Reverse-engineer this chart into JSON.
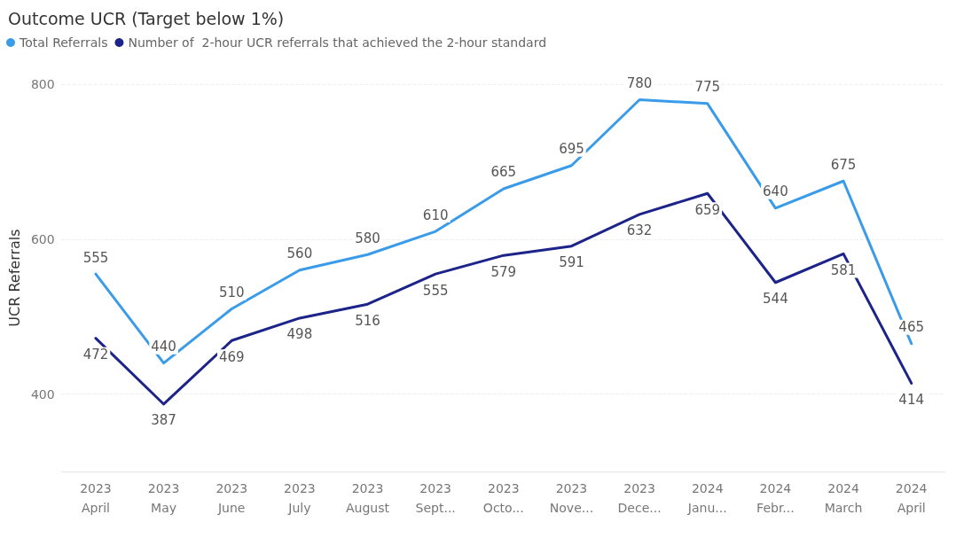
{
  "chart_data": {
    "type": "line",
    "title": "Outcome UCR (Target below 1%)",
    "ylabel": "UCR Referrals",
    "categories": [
      "2023\nApril",
      "2023\nMay",
      "2023\nJune",
      "2023\nJuly",
      "2023\nAugust",
      "2023\nSept...",
      "2023\nOcto...",
      "2023\nNove...",
      "2023\nDece...",
      "2024\nJanu...",
      "2024\nFebr...",
      "2024\nMarch",
      "2024\nApril"
    ],
    "series": [
      {
        "name": "Total Referrals",
        "color": "#3a9be8",
        "values": [
          555,
          440,
          510,
          560,
          580,
          610,
          665,
          695,
          780,
          775,
          640,
          675,
          465
        ]
      },
      {
        "name": "Number of  2-hour UCR referrals that achieved the 2-hour standard",
        "color": "#1c2389",
        "values": [
          472,
          387,
          469,
          498,
          516,
          555,
          579,
          591,
          632,
          659,
          544,
          581,
          414
        ]
      }
    ],
    "ylim": [
      300,
      800
    ],
    "yticks": [
      400,
      600,
      800
    ],
    "grid": "y",
    "legend": "top left",
    "data_labels": true,
    "marker": "none",
    "line_style": "solid"
  }
}
